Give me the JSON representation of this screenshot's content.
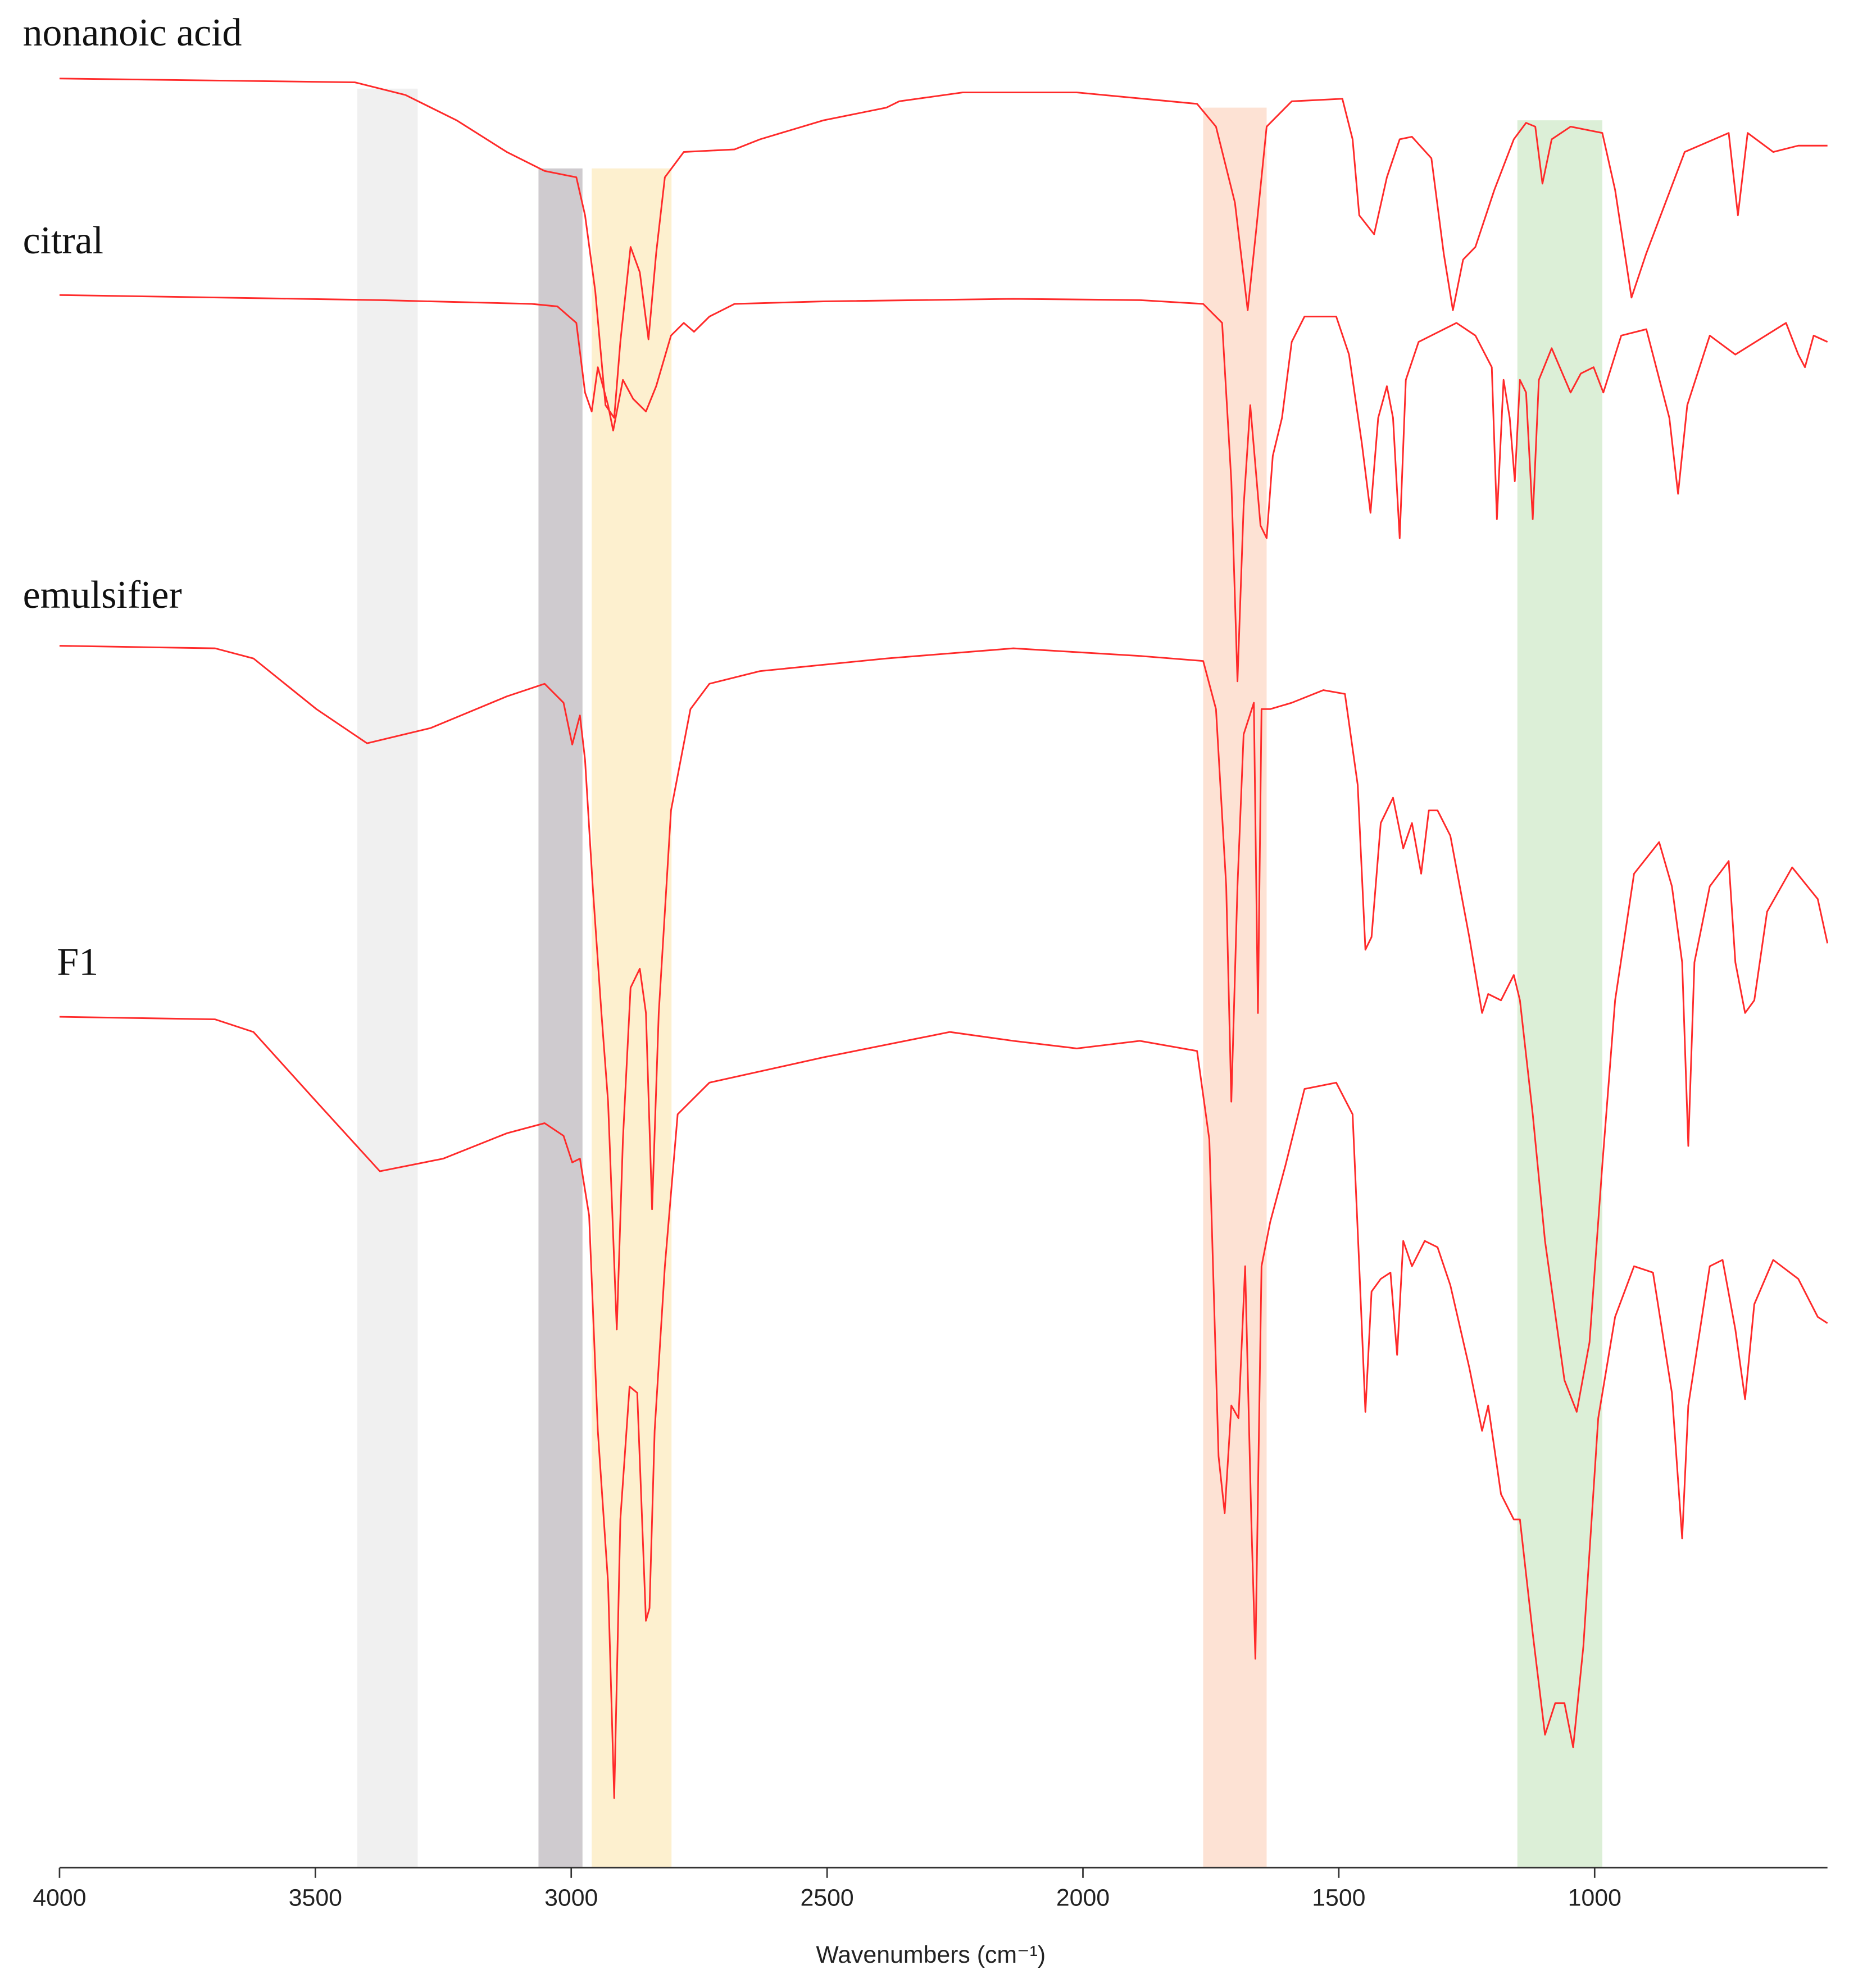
{
  "chart_data": {
    "type": "line",
    "xlabel": "Wavenumbers (cm⁻¹)",
    "xlim": [
      4000,
      545
    ],
    "xticks": [
      4000,
      3500,
      3000,
      2500,
      2000,
      1500,
      1000
    ],
    "ylim": [
      0,
      1475
    ],
    "bands": [
      {
        "x": [
          3418,
          3300
        ],
        "color": "#f0f0f0"
      },
      {
        "x": [
          3064,
          2978
        ],
        "color": "#cfcbcf"
      },
      {
        "x": [
          2960,
          2804
        ],
        "color": "#fdf0cf"
      },
      {
        "x": [
          1765,
          1641
        ],
        "color": "#fde2d4"
      },
      {
        "x": [
          1151,
          985
        ],
        "color": "#dcefd7"
      }
    ],
    "series": [
      {
        "name": "nonanoic acid",
        "color": "#ff2a2a",
        "x": [
          4000,
          3423,
          3324,
          3224,
          3126,
          3052,
          2990,
          2973,
          2953,
          2933,
          2916,
          2904,
          2884,
          2866,
          2849,
          2834,
          2817,
          2780,
          2681,
          2631,
          2507,
          2384,
          2359,
          2235,
          2012,
          1777,
          1740,
          1703,
          1678,
          1661,
          1641,
          1592,
          1493,
          1473,
          1460,
          1431,
          1406,
          1381,
          1357,
          1319,
          1295,
          1277,
          1257,
          1233,
          1196,
          1158,
          1134,
          1116,
          1102,
          1084,
          1047,
          985,
          960,
          928,
          899,
          824,
          738,
          720,
          701,
          651,
          602,
          545
        ],
        "values": [
          1413,
          1410,
          1400,
          1380,
          1355,
          1340,
          1335,
          1305,
          1245,
          1155,
          1145,
          1205,
          1280,
          1260,
          1207,
          1275,
          1335,
          1355,
          1357,
          1365,
          1380,
          1390,
          1395,
          1402,
          1402,
          1393,
          1375,
          1315,
          1230,
          1295,
          1375,
          1395,
          1397,
          1365,
          1305,
          1290,
          1335,
          1365,
          1367,
          1350,
          1275,
          1230,
          1270,
          1280,
          1325,
          1365,
          1378,
          1375,
          1330,
          1365,
          1375,
          1370,
          1325,
          1240,
          1275,
          1355,
          1370,
          1305,
          1370,
          1355,
          1360,
          1360
        ]
      },
      {
        "name": "citral",
        "color": "#ff2a2a",
        "x": [
          4000,
          3374,
          3077,
          3027,
          2990,
          2973,
          2960,
          2948,
          2928,
          2918,
          2899,
          2879,
          2854,
          2834,
          2805,
          2780,
          2760,
          2730,
          2681,
          2507,
          2136,
          1889,
          1765,
          1728,
          1710,
          1698,
          1686,
          1673,
          1653,
          1641,
          1629,
          1611,
          1592,
          1567,
          1505,
          1480,
          1455,
          1438,
          1423,
          1406,
          1394,
          1381,
          1369,
          1344,
          1270,
          1233,
          1201,
          1191,
          1178,
          1166,
          1156,
          1146,
          1134,
          1121,
          1109,
          1084,
          1047,
          1027,
          1002,
          983,
          948,
          899,
          854,
          837,
          819,
          775,
          725,
          626,
          602,
          589,
          572,
          545
        ],
        "values": [
          1242,
          1238,
          1235,
          1233,
          1220,
          1165,
          1150,
          1185,
          1155,
          1135,
          1175,
          1160,
          1150,
          1170,
          1210,
          1220,
          1213,
          1225,
          1235,
          1237,
          1239,
          1238,
          1235,
          1220,
          1095,
          937,
          1075,
          1155,
          1060,
          1050,
          1115,
          1145,
          1205,
          1225,
          1225,
          1195,
          1125,
          1070,
          1145,
          1170,
          1145,
          1050,
          1175,
          1205,
          1220,
          1210,
          1185,
          1065,
          1175,
          1145,
          1095,
          1175,
          1165,
          1065,
          1175,
          1200,
          1165,
          1180,
          1185,
          1165,
          1210,
          1215,
          1145,
          1085,
          1155,
          1210,
          1195,
          1220,
          1195,
          1185,
          1210,
          1205
        ]
      },
      {
        "name": "emulsifier",
        "color": "#ff2a2a",
        "x": [
          4000,
          3696,
          3621,
          3498,
          3399,
          3275,
          3126,
          3052,
          3015,
          2998,
          2983,
          2973,
          2958,
          2941,
          2928,
          2911,
          2899,
          2884,
          2866,
          2854,
          2842,
          2829,
          2805,
          2767,
          2730,
          2631,
          2384,
          2136,
          1889,
          1765,
          1740,
          1720,
          1710,
          1698,
          1686,
          1666,
          1658,
          1651,
          1634,
          1592,
          1530,
          1488,
          1463,
          1448,
          1436,
          1418,
          1394,
          1374,
          1357,
          1339,
          1324,
          1307,
          1282,
          1245,
          1220,
          1208,
          1183,
          1158,
          1146,
          1121,
          1097,
          1059,
          1035,
          1010,
          985,
          960,
          923,
          874,
          849,
          829,
          817,
          805,
          775,
          738,
          725,
          706,
          688,
          663,
          614,
          564,
          545
        ],
        "values": [
          965,
          963,
          955,
          915,
          888,
          900,
          925,
          935,
          920,
          887,
          910,
          875,
          775,
          675,
          605,
          425,
          575,
          695,
          710,
          675,
          520,
          675,
          835,
          915,
          935,
          945,
          955,
          963,
          957,
          953,
          915,
          775,
          605,
          775,
          895,
          920,
          675,
          915,
          915,
          920,
          930,
          927,
          855,
          725,
          735,
          825,
          845,
          805,
          825,
          785,
          835,
          835,
          815,
          735,
          675,
          690,
          685,
          705,
          685,
          595,
          495,
          385,
          360,
          415,
          555,
          685,
          785,
          810,
          775,
          715,
          570,
          715,
          775,
          795,
          715,
          675,
          685,
          755,
          790,
          765,
          730
        ]
      },
      {
        "name": "F1",
        "color": "#ff2a2a",
        "x": [
          4000,
          3696,
          3621,
          3498,
          3374,
          3250,
          3126,
          3052,
          3015,
          2998,
          2983,
          2965,
          2948,
          2928,
          2916,
          2904,
          2886,
          2871,
          2854,
          2847,
          2837,
          2817,
          2792,
          2730,
          2507,
          2260,
          2136,
          2012,
          1889,
          1777,
          1753,
          1735,
          1723,
          1710,
          1696,
          1683,
          1671,
          1663,
          1651,
          1634,
          1604,
          1567,
          1505,
          1473,
          1460,
          1448,
          1436,
          1418,
          1399,
          1386,
          1374,
          1357,
          1332,
          1307,
          1282,
          1245,
          1220,
          1208,
          1183,
          1158,
          1146,
          1121,
          1097,
          1077,
          1059,
          1042,
          1022,
          993,
          960,
          923,
          886,
          849,
          829,
          817,
          775,
          750,
          725,
          706,
          688,
          651,
          602,
          564,
          545
        ],
        "values": [
          672,
          670,
          660,
          605,
          550,
          560,
          580,
          588,
          578,
          557,
          560,
          515,
          345,
          225,
          55,
          275,
          380,
          375,
          195,
          205,
          345,
          475,
          595,
          620,
          640,
          660,
          653,
          647,
          653,
          645,
          575,
          325,
          280,
          365,
          355,
          475,
          275,
          165,
          475,
          510,
          555,
          615,
          620,
          595,
          475,
          360,
          455,
          465,
          470,
          405,
          495,
          475,
          495,
          490,
          460,
          395,
          345,
          365,
          295,
          275,
          275,
          185,
          105,
          130,
          130,
          95,
          175,
          355,
          435,
          475,
          470,
          375,
          260,
          365,
          475,
          480,
          425,
          370,
          445,
          480,
          465,
          435,
          430
        ]
      }
    ]
  }
}
